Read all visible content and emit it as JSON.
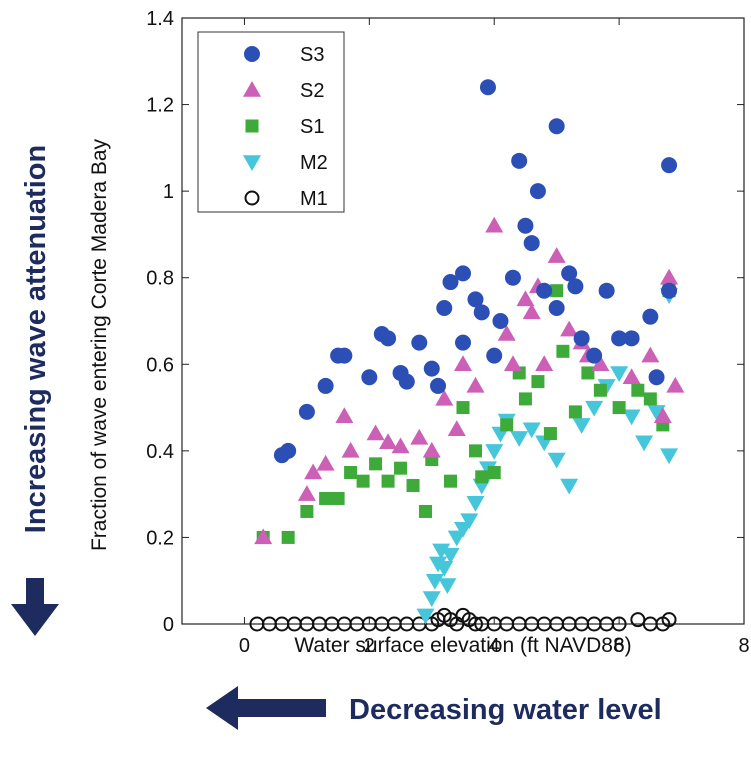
{
  "chart_data": {
    "type": "scatter",
    "title": "",
    "xlabel": "Water surface elevation (ft NAVD88)",
    "ylabel": "Fraction of wave entering Corte Madera Bay",
    "xlim": [
      -1,
      8
    ],
    "ylim": [
      0,
      1.4
    ],
    "x_ticks": [
      "0",
      "2",
      "4",
      "6",
      "8"
    ],
    "y_ticks": [
      "0",
      "0.2",
      "0.4",
      "0.6",
      "0.8",
      "1",
      "1.2",
      "1.4"
    ],
    "grid": false,
    "legend_position": "top-left",
    "annotations": {
      "left": "Increasing wave attenuation",
      "bottom": "Decreasing water level"
    },
    "colors": {
      "arrow": "#1d2b5e",
      "S3": "#2b4fb5",
      "S2": "#cc5fb6",
      "S1": "#3daa3a",
      "M2": "#45c6da",
      "M1": "#111111"
    },
    "series": [
      {
        "name": "S3",
        "marker": "circle",
        "points": [
          [
            0.6,
            0.39
          ],
          [
            0.7,
            0.4
          ],
          [
            1.0,
            0.49
          ],
          [
            1.3,
            0.55
          ],
          [
            1.5,
            0.62
          ],
          [
            1.6,
            0.62
          ],
          [
            2.0,
            0.57
          ],
          [
            2.2,
            0.67
          ],
          [
            2.3,
            0.66
          ],
          [
            2.5,
            0.58
          ],
          [
            2.6,
            0.56
          ],
          [
            2.8,
            0.65
          ],
          [
            3.0,
            0.59
          ],
          [
            3.1,
            0.55
          ],
          [
            3.2,
            0.73
          ],
          [
            3.3,
            0.79
          ],
          [
            3.5,
            0.81
          ],
          [
            3.5,
            0.65
          ],
          [
            3.7,
            0.75
          ],
          [
            3.8,
            0.72
          ],
          [
            3.9,
            1.24
          ],
          [
            4.0,
            0.62
          ],
          [
            4.1,
            0.7
          ],
          [
            4.3,
            0.8
          ],
          [
            4.4,
            1.07
          ],
          [
            4.5,
            0.92
          ],
          [
            4.6,
            0.88
          ],
          [
            4.7,
            1.0
          ],
          [
            4.8,
            0.77
          ],
          [
            5.0,
            1.15
          ],
          [
            5.0,
            0.73
          ],
          [
            5.2,
            0.81
          ],
          [
            5.3,
            0.78
          ],
          [
            5.4,
            0.66
          ],
          [
            5.6,
            0.62
          ],
          [
            5.8,
            0.77
          ],
          [
            6.0,
            0.66
          ],
          [
            6.2,
            0.66
          ],
          [
            6.5,
            0.71
          ],
          [
            6.6,
            0.57
          ],
          [
            6.8,
            1.06
          ],
          [
            6.8,
            0.77
          ]
        ]
      },
      {
        "name": "S2",
        "marker": "triangle-up",
        "points": [
          [
            0.3,
            0.2
          ],
          [
            1.0,
            0.3
          ],
          [
            1.1,
            0.35
          ],
          [
            1.3,
            0.37
          ],
          [
            1.6,
            0.48
          ],
          [
            1.7,
            0.4
          ],
          [
            2.1,
            0.44
          ],
          [
            2.3,
            0.42
          ],
          [
            2.5,
            0.41
          ],
          [
            2.8,
            0.43
          ],
          [
            3.0,
            0.4
          ],
          [
            3.2,
            0.52
          ],
          [
            3.4,
            0.45
          ],
          [
            3.5,
            0.6
          ],
          [
            3.7,
            0.55
          ],
          [
            4.0,
            0.92
          ],
          [
            4.2,
            0.67
          ],
          [
            4.3,
            0.6
          ],
          [
            4.5,
            0.75
          ],
          [
            4.6,
            0.72
          ],
          [
            4.7,
            0.78
          ],
          [
            4.8,
            0.6
          ],
          [
            5.0,
            0.85
          ],
          [
            5.2,
            0.68
          ],
          [
            5.4,
            0.65
          ],
          [
            5.5,
            0.62
          ],
          [
            5.7,
            0.6
          ],
          [
            6.2,
            0.57
          ],
          [
            6.5,
            0.62
          ],
          [
            6.7,
            0.48
          ],
          [
            6.8,
            0.8
          ],
          [
            6.9,
            0.55
          ]
        ]
      },
      {
        "name": "S1",
        "marker": "square",
        "points": [
          [
            0.3,
            0.2
          ],
          [
            0.7,
            0.2
          ],
          [
            1.0,
            0.26
          ],
          [
            1.3,
            0.29
          ],
          [
            1.5,
            0.29
          ],
          [
            1.7,
            0.35
          ],
          [
            1.9,
            0.33
          ],
          [
            2.1,
            0.37
          ],
          [
            2.3,
            0.33
          ],
          [
            2.5,
            0.36
          ],
          [
            2.7,
            0.32
          ],
          [
            2.9,
            0.26
          ],
          [
            3.0,
            0.38
          ],
          [
            3.3,
            0.33
          ],
          [
            3.5,
            0.5
          ],
          [
            3.7,
            0.4
          ],
          [
            3.8,
            0.34
          ],
          [
            4.0,
            0.35
          ],
          [
            4.2,
            0.46
          ],
          [
            4.4,
            0.58
          ],
          [
            4.5,
            0.52
          ],
          [
            4.7,
            0.56
          ],
          [
            4.9,
            0.44
          ],
          [
            5.0,
            0.77
          ],
          [
            5.1,
            0.63
          ],
          [
            5.3,
            0.49
          ],
          [
            5.5,
            0.58
          ],
          [
            5.7,
            0.54
          ],
          [
            6.0,
            0.5
          ],
          [
            6.3,
            0.54
          ],
          [
            6.5,
            0.52
          ],
          [
            6.7,
            0.46
          ],
          [
            6.8,
            0.77
          ]
        ]
      },
      {
        "name": "M2",
        "marker": "triangle-down",
        "points": [
          [
            2.9,
            0.02
          ],
          [
            3.0,
            0.06
          ],
          [
            3.05,
            0.1
          ],
          [
            3.1,
            0.14
          ],
          [
            3.15,
            0.17
          ],
          [
            3.2,
            0.13
          ],
          [
            3.25,
            0.09
          ],
          [
            3.3,
            0.16
          ],
          [
            3.4,
            0.2
          ],
          [
            3.5,
            0.22
          ],
          [
            3.6,
            0.24
          ],
          [
            3.7,
            0.28
          ],
          [
            3.8,
            0.32
          ],
          [
            3.9,
            0.36
          ],
          [
            4.0,
            0.4
          ],
          [
            4.1,
            0.44
          ],
          [
            4.2,
            0.47
          ],
          [
            4.4,
            0.43
          ],
          [
            4.6,
            0.45
          ],
          [
            4.8,
            0.42
          ],
          [
            5.0,
            0.38
          ],
          [
            5.2,
            0.32
          ],
          [
            5.4,
            0.46
          ],
          [
            5.6,
            0.5
          ],
          [
            5.8,
            0.55
          ],
          [
            6.0,
            0.58
          ],
          [
            6.2,
            0.48
          ],
          [
            6.4,
            0.42
          ],
          [
            6.6,
            0.49
          ],
          [
            6.8,
            0.39
          ],
          [
            6.8,
            0.76
          ]
        ]
      },
      {
        "name": "M1",
        "marker": "circle-open",
        "points": [
          [
            0.2,
            0.0
          ],
          [
            0.4,
            0.0
          ],
          [
            0.6,
            0.0
          ],
          [
            0.8,
            0.0
          ],
          [
            1.0,
            0.0
          ],
          [
            1.2,
            0.0
          ],
          [
            1.4,
            0.0
          ],
          [
            1.6,
            0.0
          ],
          [
            1.8,
            0.0
          ],
          [
            2.0,
            0.0
          ],
          [
            2.2,
            0.0
          ],
          [
            2.4,
            0.0
          ],
          [
            2.6,
            0.0
          ],
          [
            2.8,
            0.0
          ],
          [
            3.0,
            0.0
          ],
          [
            3.1,
            0.01
          ],
          [
            3.2,
            0.02
          ],
          [
            3.3,
            0.01
          ],
          [
            3.4,
            0.0
          ],
          [
            3.5,
            0.02
          ],
          [
            3.6,
            0.01
          ],
          [
            3.7,
            0.0
          ],
          [
            3.8,
            0.0
          ],
          [
            4.0,
            0.0
          ],
          [
            4.2,
            0.0
          ],
          [
            4.4,
            0.0
          ],
          [
            4.6,
            0.0
          ],
          [
            4.8,
            0.0
          ],
          [
            5.0,
            0.0
          ],
          [
            5.2,
            0.0
          ],
          [
            5.4,
            0.0
          ],
          [
            5.6,
            0.0
          ],
          [
            5.8,
            0.0
          ],
          [
            6.0,
            0.0
          ],
          [
            6.3,
            0.01
          ],
          [
            6.5,
            0.0
          ],
          [
            6.7,
            0.0
          ],
          [
            6.8,
            0.01
          ]
        ]
      }
    ]
  }
}
